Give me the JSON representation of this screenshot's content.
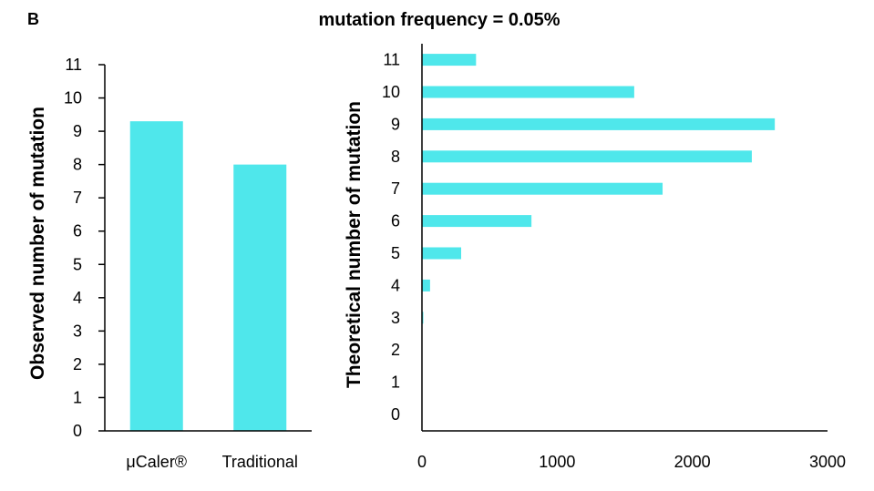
{
  "panel_label": "B",
  "title": "mutation frequency = 0.05%",
  "colors": {
    "bar": "#4FE7EB",
    "axis": "#000000"
  },
  "chart_data": [
    {
      "type": "bar",
      "orientation": "vertical",
      "categories": [
        "μCaler®",
        "Traditional"
      ],
      "values": [
        9.3,
        8
      ],
      "ylabel": "Observed number of mutation",
      "xlabel": "",
      "ylim": [
        0,
        11
      ],
      "yticks": [
        "0",
        "1",
        "2",
        "3",
        "4",
        "5",
        "6",
        "7",
        "8",
        "9",
        "10",
        "11"
      ],
      "grid": false
    },
    {
      "type": "bar",
      "orientation": "horizontal",
      "categories": [
        "0",
        "1",
        "2",
        "3",
        "4",
        "5",
        "6",
        "7",
        "8",
        "9",
        "10",
        "11"
      ],
      "values": [
        0,
        0,
        0,
        10,
        60,
        290,
        810,
        1780,
        2440,
        2610,
        1570,
        400
      ],
      "ylabel": "Theoretical number of mutation",
      "xlabel": "",
      "xlim": [
        0,
        3000
      ],
      "xticks": [
        "0",
        "1000",
        "2000",
        "3000"
      ],
      "grid": false
    }
  ]
}
